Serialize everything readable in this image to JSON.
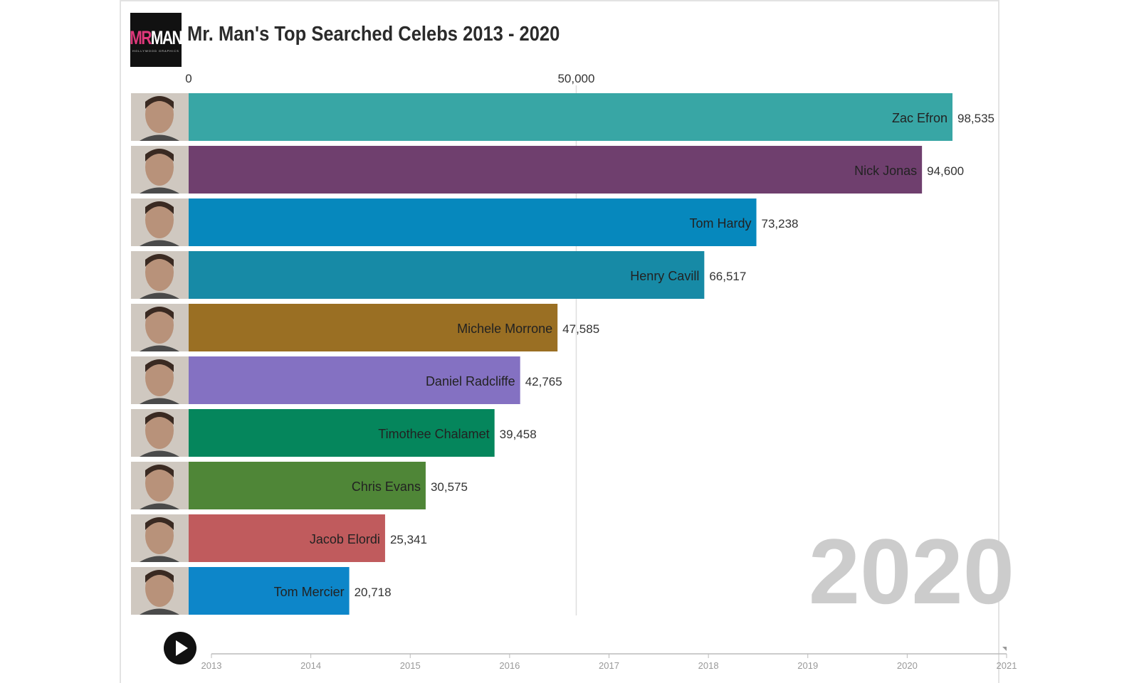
{
  "logo": {
    "mr": "MR",
    "man": "MAN",
    "sub": "HOLLYWOOD GRAPHICS"
  },
  "title": "Mr. Man's Top Searched Celebs 2013 - 2020",
  "colors": {
    "accent": "#e0387b",
    "gridline": "#dddddd",
    "year_label": "#cccccc"
  },
  "chart_data": {
    "type": "bar",
    "orientation": "horizontal",
    "title": "Mr. Man's Top Searched Celebs 2013 - 2020",
    "current_year": "2020",
    "x_ticks": [
      0,
      50000
    ],
    "x_tick_labels": [
      "0",
      "50,000"
    ],
    "xlim": [
      0,
      98535
    ],
    "categories": [
      "Zac Efron",
      "Nick Jonas",
      "Tom Hardy",
      "Henry Cavill",
      "Michele Morrone",
      "Daniel Radcliffe",
      "Timothee Chalamet",
      "Chris Evans",
      "Jacob Elordi",
      "Tom Mercier"
    ],
    "values": [
      98535,
      94600,
      73238,
      66517,
      47585,
      42765,
      39458,
      30575,
      25341,
      20718
    ],
    "value_labels": [
      "98,535",
      "94,600",
      "73,238",
      "66,517",
      "47,585",
      "42,765",
      "39,458",
      "30,575",
      "25,341",
      "20,718"
    ],
    "bar_colors": [
      "#38a6a5",
      "#6f3f6e",
      "#0688bd",
      "#178aa6",
      "#9a6f23",
      "#8471c2",
      "#05865c",
      "#4f8637",
      "#c05b5d",
      "#0d86c9"
    ],
    "timeline": {
      "labels": [
        "2013",
        "2014",
        "2015",
        "2016",
        "2017",
        "2018",
        "2019",
        "2020",
        "2021"
      ],
      "range": [
        2013,
        2021
      ],
      "current": 2020
    }
  }
}
